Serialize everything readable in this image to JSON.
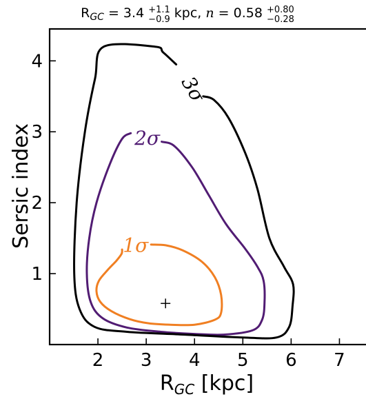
{
  "chart_data": {
    "type": "line",
    "title": {
      "pre": "R",
      "pre_sub": "GC",
      "val1": " = 3.4 ",
      "err1_up": "+1.1",
      "err1_dn": "−0.9",
      "mid": " kpc, ",
      "nvar": "n",
      "val2": " = 0.58 ",
      "err2_up": "+0.80",
      "err2_dn": "−0.28"
    },
    "xlabel": {
      "main": "R",
      "sub": "GC",
      "unit": " [kpc]"
    },
    "ylabel": "Sersic index",
    "xlim": [
      1.0,
      7.55
    ],
    "ylim": [
      0.0,
      4.45
    ],
    "xticks": [
      2,
      3,
      4,
      5,
      6,
      7
    ],
    "yticks": [
      1,
      2,
      3,
      4
    ],
    "grid": false,
    "best_fit": {
      "x": 3.4,
      "y": 0.58
    },
    "series": [
      {
        "name": "1σ",
        "color": "#f07f22",
        "label_pos": {
          "x": 2.78,
          "y": 1.4
        },
        "gap": [
          2.5,
          3.1
        ],
        "points": [
          [
            2.5,
            1.34
          ],
          [
            2.49,
            1.28
          ],
          [
            2.38,
            1.18
          ],
          [
            2.2,
            1.05
          ],
          [
            2.02,
            0.9
          ],
          [
            1.97,
            0.75
          ],
          [
            2.05,
            0.6
          ],
          [
            2.28,
            0.47
          ],
          [
            2.65,
            0.36
          ],
          [
            3.05,
            0.3
          ],
          [
            3.5,
            0.28
          ],
          [
            4.0,
            0.28
          ],
          [
            4.42,
            0.35
          ],
          [
            4.55,
            0.45
          ],
          [
            4.55,
            0.7
          ],
          [
            4.42,
            0.95
          ],
          [
            4.15,
            1.17
          ],
          [
            3.75,
            1.33
          ],
          [
            3.4,
            1.4
          ],
          [
            3.1,
            1.41
          ]
        ]
      },
      {
        "name": "2σ",
        "color": "#511c73",
        "label_pos": {
          "x": 3.02,
          "y": 2.91
        },
        "gap": [
          2.68,
          3.32
        ],
        "points": [
          [
            2.68,
            2.98
          ],
          [
            2.5,
            2.9
          ],
          [
            2.25,
            2.55
          ],
          [
            1.97,
            2.0
          ],
          [
            1.82,
            1.5
          ],
          [
            1.77,
            1.0
          ],
          [
            1.85,
            0.6
          ],
          [
            2.1,
            0.37
          ],
          [
            2.6,
            0.24
          ],
          [
            3.3,
            0.18
          ],
          [
            4.0,
            0.15
          ],
          [
            4.6,
            0.14
          ],
          [
            5.2,
            0.2
          ],
          [
            5.4,
            0.35
          ],
          [
            5.45,
            0.6
          ],
          [
            5.43,
            0.9
          ],
          [
            5.3,
            1.1
          ],
          [
            5.05,
            1.35
          ],
          [
            4.65,
            1.7
          ],
          [
            4.3,
            2.1
          ],
          [
            3.95,
            2.5
          ],
          [
            3.58,
            2.8
          ],
          [
            3.32,
            2.86
          ]
        ]
      },
      {
        "name": "3σ",
        "color": "#000000",
        "label_pos": {
          "x": 3.97,
          "y": 3.6
        },
        "label_rotation": 60,
        "gap": [
          3.62,
          4.18
        ],
        "points": [
          [
            3.62,
            3.95
          ],
          [
            3.35,
            4.12
          ],
          [
            3.18,
            4.2
          ],
          [
            2.12,
            4.2
          ],
          [
            1.94,
            3.75
          ],
          [
            1.73,
            3.0
          ],
          [
            1.56,
            2.0
          ],
          [
            1.51,
            1.0
          ],
          [
            1.62,
            0.5
          ],
          [
            1.93,
            0.25
          ],
          [
            2.6,
            0.18
          ],
          [
            3.8,
            0.14
          ],
          [
            5.0,
            0.1
          ],
          [
            5.7,
            0.1
          ],
          [
            5.96,
            0.25
          ],
          [
            6.03,
            0.55
          ],
          [
            6.04,
            0.85
          ],
          [
            5.85,
            1.1
          ],
          [
            5.55,
            1.5
          ],
          [
            5.3,
            2.2
          ],
          [
            5.05,
            2.7
          ],
          [
            4.7,
            3.2
          ],
          [
            4.4,
            3.45
          ],
          [
            4.18,
            3.5
          ]
        ]
      }
    ]
  }
}
